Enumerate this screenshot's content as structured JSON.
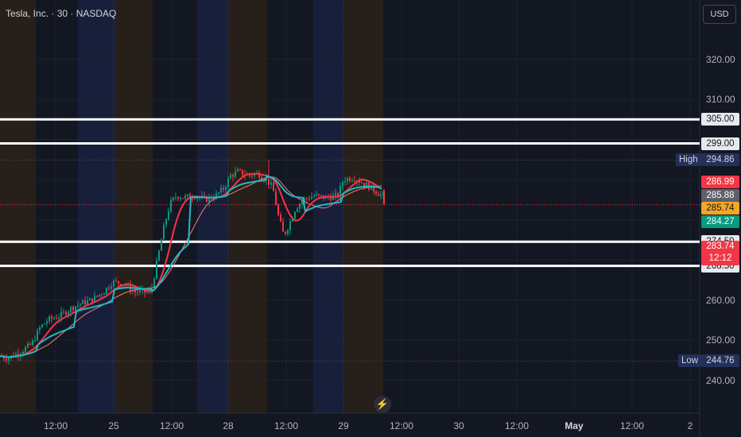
{
  "header": {
    "symbol_title": "Tesla, Inc. · 30 · NASDAQ"
  },
  "currency_button": "USD",
  "price_axis": {
    "range": [
      235,
      330
    ],
    "ticks": [
      {
        "label": "320.00",
        "value": 320
      },
      {
        "label": "310.00",
        "value": 310
      },
      {
        "label": "260.00",
        "value": 260
      },
      {
        "label": "250.00",
        "value": 250
      },
      {
        "label": "240.00",
        "value": 240
      }
    ]
  },
  "time_axis": {
    "ticks": [
      {
        "label": "12:00",
        "bold": false
      },
      {
        "label": "25",
        "bold": false
      },
      {
        "label": "12:00",
        "bold": false
      },
      {
        "label": "28",
        "bold": false
      },
      {
        "label": "12:00",
        "bold": false
      },
      {
        "label": "29",
        "bold": false
      },
      {
        "label": "12:00",
        "bold": false
      },
      {
        "label": "30",
        "bold": false
      },
      {
        "label": "12:00",
        "bold": false
      },
      {
        "label": "May",
        "bold": true
      },
      {
        "label": "12:00",
        "bold": false
      },
      {
        "label": "2",
        "bold": false
      }
    ]
  },
  "levels": [
    {
      "label": "305.00",
      "value": 305,
      "color": "#ffffff"
    },
    {
      "label": "299.00",
      "value": 299,
      "color": "#ffffff"
    },
    {
      "label": "274.50",
      "value": 274.5,
      "color": "#ffffff"
    },
    {
      "label": "268.50",
      "value": 268.5,
      "color": "#ffffff"
    }
  ],
  "high_marker": {
    "name": "High",
    "label": "294.86",
    "value": 294.86
  },
  "low_marker": {
    "name": "Low",
    "label": "244.76",
    "value": 244.76
  },
  "price_tags": [
    {
      "label": "286.99",
      "value": 286.99,
      "style": "red"
    },
    {
      "label": "285.88",
      "value": 285.88,
      "style": "gray"
    },
    {
      "label": "285.74",
      "value": 285.74,
      "style": "orange"
    },
    {
      "label": "284.27",
      "value": 284.27,
      "style": "teal"
    }
  ],
  "last_price": {
    "label": "283.74",
    "value": 283.74,
    "countdown": "12:12"
  },
  "colors": {
    "background": "#131722",
    "up": "#089981",
    "down": "#f23645",
    "ma_fast": "#22b8c9",
    "ma_mid": "#f23645",
    "ma_slow": "#f0806c",
    "premarket": "#261f1a",
    "postmarket": "#181f3a"
  },
  "replay_icon": "replay-icon"
}
